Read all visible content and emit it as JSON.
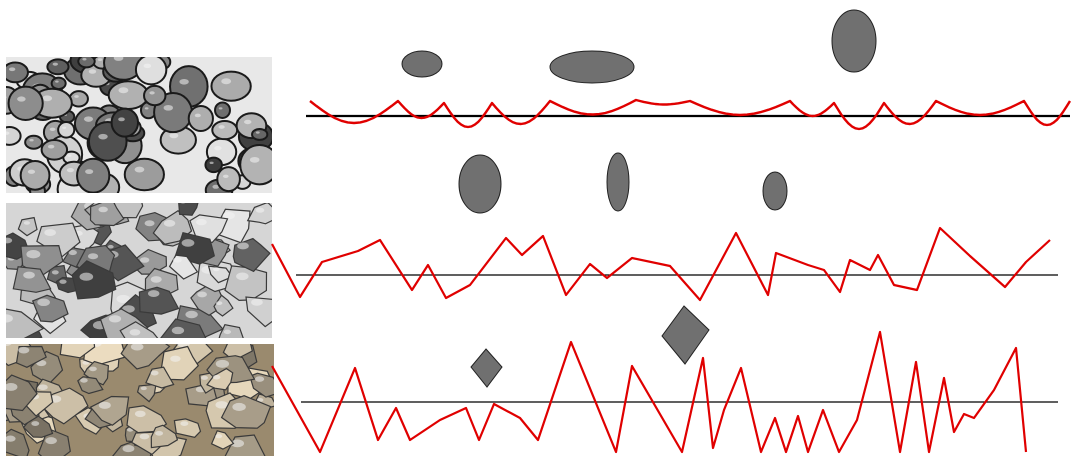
{
  "panels": [
    {
      "id": "rounded-grains",
      "particle_shape": "ellipse",
      "profile": "scalloped",
      "photo_tone": "grayscale"
    },
    {
      "id": "subangular-grains",
      "particle_shape": "ellipse",
      "profile": "jagged",
      "photo_tone": "grayscale"
    },
    {
      "id": "angular-grains",
      "particle_shape": "diamond",
      "profile": "sharp-spiked",
      "photo_tone": "sepia"
    }
  ],
  "colors": {
    "profile_line": "#e00000",
    "baseline": "#000000",
    "particle_fill": "#707070",
    "particle_stroke": "#222222",
    "photo_bg_1": "#e8e8e8",
    "photo_bg_2": "#d6d6d6",
    "photo_bg_3": "#9a8a6e"
  }
}
